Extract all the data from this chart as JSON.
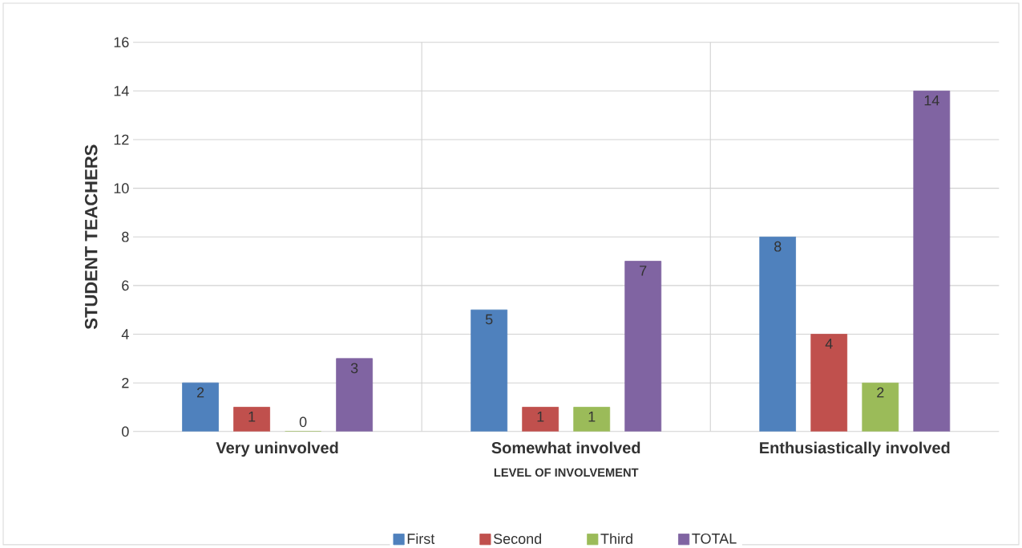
{
  "chart_data": {
    "type": "bar",
    "xlabel": "LEVEL OF INVOLVEMENT",
    "ylabel": "STUDENT TEACHERS",
    "categories": [
      "Very uninvolved",
      "Somewhat involved",
      "Enthusiastically involved"
    ],
    "series": [
      {
        "name": "First",
        "color": "#4f81bd",
        "values": [
          2,
          5,
          8
        ]
      },
      {
        "name": "Second",
        "color": "#c0504d",
        "values": [
          1,
          1,
          4
        ]
      },
      {
        "name": "Third",
        "color": "#9bbb59",
        "values": [
          0,
          1,
          2
        ]
      },
      {
        "name": "TOTAL",
        "color": "#8064a2",
        "values": [
          3,
          7,
          14
        ]
      }
    ],
    "ylim": [
      0,
      16
    ],
    "yticks": [
      0,
      2,
      4,
      6,
      8,
      10,
      12,
      14,
      16
    ],
    "grid": true,
    "legend": "bottom",
    "data_labels": true
  }
}
